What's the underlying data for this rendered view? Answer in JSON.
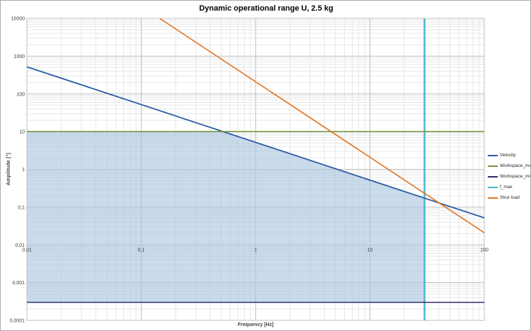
{
  "chart_data": {
    "type": "line",
    "title": "Dynamic operational range U, 2.5 kg",
    "xlabel": "Frequency [Hz]",
    "ylabel": "Amplitude [°]",
    "x_scale": "log",
    "y_scale": "log",
    "xlim": [
      0.01,
      100
    ],
    "ylim": [
      0.0001,
      10000
    ],
    "grid": "major and minor gridlines, log-log",
    "legend_position": "right",
    "x_ticks": [
      {
        "label": "0,01",
        "value": 0.01
      },
      {
        "label": "0,1",
        "value": 0.1
      },
      {
        "label": "1",
        "value": 1
      },
      {
        "label": "10",
        "value": 10
      },
      {
        "label": "100",
        "value": 100
      }
    ],
    "y_ticks": [
      {
        "label": "10000",
        "value": 10000
      },
      {
        "label": "1000",
        "value": 1000
      },
      {
        "label": "100",
        "value": 100
      },
      {
        "label": "10",
        "value": 10
      },
      {
        "label": "1",
        "value": 1
      },
      {
        "label": "0,1",
        "value": 0.1
      },
      {
        "label": "0,01",
        "value": 0.01
      },
      {
        "label": "0,001",
        "value": 0.001
      },
      {
        "label": "0,0001",
        "value": 0.0001
      }
    ],
    "series": [
      {
        "name": "Velocity",
        "color": "#2B5CA5",
        "width": 1.8,
        "relation": "amplitude ≈ 5.2 / f",
        "points": [
          [
            0.01,
            520
          ],
          [
            100,
            0.052
          ]
        ]
      },
      {
        "name": "Workspace_max",
        "color": "#75923C",
        "width": 1.6,
        "relation": "amplitude = 10",
        "points": [
          [
            0.01,
            10
          ],
          [
            100,
            10
          ]
        ]
      },
      {
        "name": "Workspace_min",
        "color": "#2B2D70",
        "width": 1.6,
        "relation": "amplitude = 0.0003",
        "points": [
          [
            0.01,
            0.0003
          ],
          [
            100,
            0.0003
          ]
        ]
      },
      {
        "name": "f_max",
        "color": "#4FB4D2",
        "width": 2.5,
        "relation": "vertical line, f = 30 Hz",
        "points": [
          [
            30,
            0.0001
          ],
          [
            30,
            10000
          ]
        ]
      },
      {
        "name": "Strut load",
        "color": "#E07420",
        "width": 1.6,
        "relation": "amplitude ≈ 210 / f²",
        "points": [
          [
            0.145,
            10000
          ],
          [
            100,
            0.021
          ]
        ]
      }
    ],
    "shaded_region": {
      "fill": "#A6C3DF",
      "opacity": 0.6,
      "description": "dynamic operational range: bounded above by Workspace_max and Velocity, right by f_max, below by Workspace_min",
      "vertices": [
        [
          0.01,
          10
        ],
        [
          0.52,
          10
        ],
        [
          30,
          0.173
        ],
        [
          30,
          0.0003
        ],
        [
          0.01,
          0.0003
        ]
      ]
    }
  }
}
